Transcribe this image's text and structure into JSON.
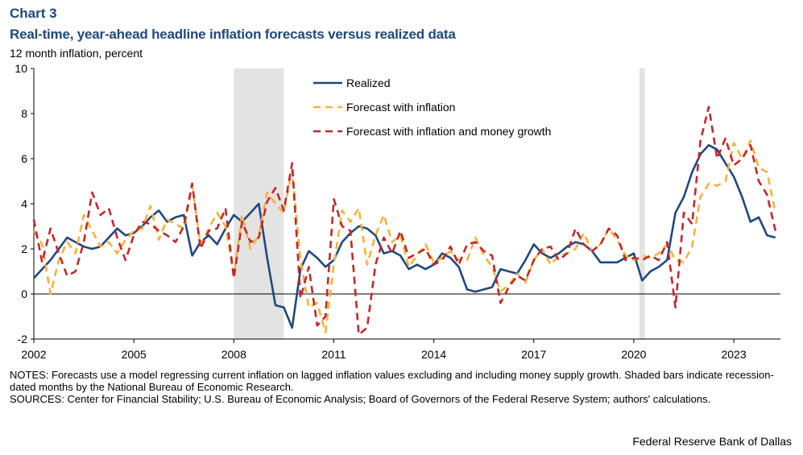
{
  "header": {
    "chart_label": "Chart 3",
    "title": "Real-time, year-ahead headline inflation forecasts versus realized data",
    "subtitle": "12 month inflation, percent"
  },
  "notes": {
    "notes_text": "NOTES: Forecasts use a model regressing current inflation on lagged inflation values excluding and including money supply growth. Shaded bars indicate recession-dated months by the National Bureau of Economic Research.",
    "sources_text": "SOURCES: Center for Financial Stability; U.S. Bureau of Economic Analysis; Board of Governors of the Federal Reserve System; authors' calculations."
  },
  "footer": {
    "credit": "Federal Reserve Bank of Dallas"
  },
  "colors": {
    "realized": "#1f497d",
    "forecast_inflation": "#f6b23c",
    "forecast_money": "#c0282d",
    "recession": "#e3e3e3",
    "title": "#1f497d"
  },
  "chart_data": {
    "type": "line",
    "title": "Real-time, year-ahead headline inflation forecasts versus realized data",
    "ylabel": "12 month inflation, percent",
    "xlim": [
      2002,
      2024.4
    ],
    "ylim": [
      -2,
      10
    ],
    "x_ticks": [
      2002,
      2005,
      2008,
      2011,
      2014,
      2017,
      2020,
      2023
    ],
    "x_tick_labels": [
      "2002",
      "2005",
      "2008",
      "2011",
      "2014",
      "2017",
      "2020",
      "2023"
    ],
    "y_ticks": [
      -2,
      0,
      2,
      4,
      6,
      8,
      10
    ],
    "y_tick_labels": [
      "-2",
      "0",
      "2",
      "4",
      "6",
      "8",
      "10"
    ],
    "legend_position": "top-center",
    "grid": false,
    "recessions": [
      [
        2008.0,
        2009.5
      ],
      [
        2020.17,
        2020.33
      ]
    ],
    "series": [
      {
        "name": "Realized",
        "style": "solid",
        "points": [
          [
            2002.0,
            0.7
          ],
          [
            2002.25,
            1.1
          ],
          [
            2002.5,
            1.5
          ],
          [
            2002.75,
            2.0
          ],
          [
            2003.0,
            2.5
          ],
          [
            2003.25,
            2.3
          ],
          [
            2003.5,
            2.1
          ],
          [
            2003.75,
            2.0
          ],
          [
            2004.0,
            2.1
          ],
          [
            2004.25,
            2.5
          ],
          [
            2004.5,
            2.9
          ],
          [
            2004.75,
            2.6
          ],
          [
            2005.0,
            2.7
          ],
          [
            2005.25,
            3.0
          ],
          [
            2005.5,
            3.4
          ],
          [
            2005.75,
            3.7
          ],
          [
            2006.0,
            3.2
          ],
          [
            2006.25,
            3.4
          ],
          [
            2006.5,
            3.5
          ],
          [
            2006.75,
            1.7
          ],
          [
            2007.0,
            2.3
          ],
          [
            2007.25,
            2.6
          ],
          [
            2007.5,
            2.2
          ],
          [
            2007.75,
            2.9
          ],
          [
            2008.0,
            3.5
          ],
          [
            2008.25,
            3.2
          ],
          [
            2008.5,
            3.6
          ],
          [
            2008.75,
            4.0
          ],
          [
            2009.0,
            1.6
          ],
          [
            2009.25,
            -0.5
          ],
          [
            2009.5,
            -0.6
          ],
          [
            2009.75,
            -1.5
          ],
          [
            2010.0,
            1.1
          ],
          [
            2010.25,
            1.9
          ],
          [
            2010.5,
            1.6
          ],
          [
            2010.75,
            1.2
          ],
          [
            2011.0,
            1.5
          ],
          [
            2011.25,
            2.3
          ],
          [
            2011.5,
            2.7
          ],
          [
            2011.75,
            3.0
          ],
          [
            2012.0,
            2.9
          ],
          [
            2012.25,
            2.6
          ],
          [
            2012.5,
            1.8
          ],
          [
            2012.75,
            1.9
          ],
          [
            2013.0,
            1.7
          ],
          [
            2013.25,
            1.1
          ],
          [
            2013.5,
            1.3
          ],
          [
            2013.75,
            1.1
          ],
          [
            2014.0,
            1.3
          ],
          [
            2014.25,
            1.8
          ],
          [
            2014.5,
            1.6
          ],
          [
            2014.75,
            1.2
          ],
          [
            2015.0,
            0.2
          ],
          [
            2015.25,
            0.1
          ],
          [
            2015.5,
            0.2
          ],
          [
            2015.75,
            0.3
          ],
          [
            2016.0,
            1.1
          ],
          [
            2016.25,
            1.0
          ],
          [
            2016.5,
            0.9
          ],
          [
            2016.75,
            1.5
          ],
          [
            2017.0,
            2.2
          ],
          [
            2017.25,
            1.8
          ],
          [
            2017.5,
            1.6
          ],
          [
            2017.75,
            1.8
          ],
          [
            2018.0,
            2.1
          ],
          [
            2018.25,
            2.3
          ],
          [
            2018.5,
            2.2
          ],
          [
            2018.75,
            1.9
          ],
          [
            2019.0,
            1.4
          ],
          [
            2019.25,
            1.4
          ],
          [
            2019.5,
            1.4
          ],
          [
            2019.75,
            1.6
          ],
          [
            2020.0,
            1.8
          ],
          [
            2020.25,
            0.6
          ],
          [
            2020.5,
            1.0
          ],
          [
            2020.75,
            1.2
          ],
          [
            2021.0,
            1.5
          ],
          [
            2021.25,
            3.6
          ],
          [
            2021.5,
            4.3
          ],
          [
            2021.75,
            5.4
          ],
          [
            2022.0,
            6.2
          ],
          [
            2022.25,
            6.6
          ],
          [
            2022.5,
            6.4
          ],
          [
            2022.75,
            5.8
          ],
          [
            2023.0,
            5.2
          ],
          [
            2023.25,
            4.3
          ],
          [
            2023.5,
            3.2
          ],
          [
            2023.75,
            3.4
          ],
          [
            2024.0,
            2.6
          ],
          [
            2024.25,
            2.5
          ]
        ]
      },
      {
        "name": "Forecast with inflation",
        "style": "dashed",
        "points": [
          [
            2002.0,
            2.8
          ],
          [
            2002.25,
            2.2
          ],
          [
            2002.5,
            0.0
          ],
          [
            2002.75,
            1.5
          ],
          [
            2003.0,
            2.3
          ],
          [
            2003.25,
            1.8
          ],
          [
            2003.5,
            3.5
          ],
          [
            2003.75,
            2.8
          ],
          [
            2004.0,
            2.1
          ],
          [
            2004.25,
            2.3
          ],
          [
            2004.5,
            1.8
          ],
          [
            2004.75,
            2.4
          ],
          [
            2005.0,
            2.8
          ],
          [
            2005.25,
            2.9
          ],
          [
            2005.5,
            3.9
          ],
          [
            2005.75,
            2.4
          ],
          [
            2006.0,
            3.3
          ],
          [
            2006.25,
            3.1
          ],
          [
            2006.5,
            2.9
          ],
          [
            2006.75,
            4.8
          ],
          [
            2007.0,
            2.2
          ],
          [
            2007.25,
            2.9
          ],
          [
            2007.5,
            3.6
          ],
          [
            2007.75,
            3.0
          ],
          [
            2008.0,
            0.8
          ],
          [
            2008.25,
            3.5
          ],
          [
            2008.5,
            2.0
          ],
          [
            2008.75,
            2.6
          ],
          [
            2009.0,
            4.5
          ],
          [
            2009.25,
            4.0
          ],
          [
            2009.5,
            3.6
          ],
          [
            2009.75,
            5.5
          ],
          [
            2010.0,
            1.5
          ],
          [
            2010.25,
            -0.6
          ],
          [
            2010.5,
            -0.4
          ],
          [
            2010.75,
            -1.7
          ],
          [
            2011.0,
            1.3
          ],
          [
            2011.25,
            3.7
          ],
          [
            2011.5,
            3.2
          ],
          [
            2011.75,
            3.8
          ],
          [
            2012.0,
            1.3
          ],
          [
            2012.25,
            2.6
          ],
          [
            2012.5,
            3.5
          ],
          [
            2012.75,
            2.3
          ],
          [
            2013.0,
            2.6
          ],
          [
            2013.25,
            1.2
          ],
          [
            2013.5,
            1.7
          ],
          [
            2013.75,
            2.2
          ],
          [
            2014.0,
            1.4
          ],
          [
            2014.25,
            1.6
          ],
          [
            2014.5,
            1.9
          ],
          [
            2014.75,
            1.5
          ],
          [
            2015.0,
            1.5
          ],
          [
            2015.25,
            2.5
          ],
          [
            2015.5,
            1.7
          ],
          [
            2015.75,
            1.2
          ],
          [
            2016.0,
            0.1
          ],
          [
            2016.25,
            0.4
          ],
          [
            2016.5,
            0.9
          ],
          [
            2016.75,
            0.5
          ],
          [
            2017.0,
            1.5
          ],
          [
            2017.25,
            2.0
          ],
          [
            2017.5,
            1.3
          ],
          [
            2017.75,
            1.7
          ],
          [
            2018.0,
            1.8
          ],
          [
            2018.25,
            2.0
          ],
          [
            2018.5,
            2.7
          ],
          [
            2018.75,
            1.9
          ],
          [
            2019.0,
            2.2
          ],
          [
            2019.25,
            2.9
          ],
          [
            2019.5,
            2.4
          ],
          [
            2019.75,
            1.7
          ],
          [
            2020.0,
            1.5
          ],
          [
            2020.25,
            1.7
          ],
          [
            2020.5,
            1.6
          ],
          [
            2020.75,
            1.8
          ],
          [
            2021.0,
            2.2
          ],
          [
            2021.25,
            1.5
          ],
          [
            2021.5,
            1.4
          ],
          [
            2021.75,
            2.1
          ],
          [
            2022.0,
            4.3
          ],
          [
            2022.25,
            4.9
          ],
          [
            2022.5,
            4.8
          ],
          [
            2022.75,
            5.0
          ],
          [
            2023.0,
            6.7
          ],
          [
            2023.25,
            6.0
          ],
          [
            2023.5,
            6.8
          ],
          [
            2023.75,
            5.6
          ],
          [
            2024.0,
            5.4
          ],
          [
            2024.25,
            3.6
          ]
        ]
      },
      {
        "name": "Forecast with inflation and money growth",
        "style": "dashed",
        "points": [
          [
            2002.0,
            3.3
          ],
          [
            2002.25,
            1.4
          ],
          [
            2002.5,
            2.9
          ],
          [
            2002.75,
            1.8
          ],
          [
            2003.0,
            0.8
          ],
          [
            2003.25,
            1.0
          ],
          [
            2003.5,
            2.3
          ],
          [
            2003.75,
            4.5
          ],
          [
            2004.0,
            3.5
          ],
          [
            2004.25,
            3.8
          ],
          [
            2004.5,
            2.5
          ],
          [
            2004.75,
            1.5
          ],
          [
            2005.0,
            2.6
          ],
          [
            2005.25,
            3.2
          ],
          [
            2005.5,
            3.1
          ],
          [
            2005.75,
            2.8
          ],
          [
            2006.0,
            2.6
          ],
          [
            2006.25,
            2.3
          ],
          [
            2006.5,
            3.0
          ],
          [
            2006.75,
            4.9
          ],
          [
            2007.0,
            2.0
          ],
          [
            2007.25,
            2.8
          ],
          [
            2007.5,
            2.9
          ],
          [
            2007.75,
            3.8
          ],
          [
            2008.0,
            0.7
          ],
          [
            2008.25,
            3.2
          ],
          [
            2008.5,
            2.3
          ],
          [
            2008.75,
            2.5
          ],
          [
            2009.0,
            4.1
          ],
          [
            2009.25,
            4.7
          ],
          [
            2009.5,
            3.7
          ],
          [
            2009.75,
            5.8
          ],
          [
            2010.0,
            -0.2
          ],
          [
            2010.25,
            1.2
          ],
          [
            2010.5,
            -1.4
          ],
          [
            2010.75,
            -1.0
          ],
          [
            2011.0,
            4.2
          ],
          [
            2011.25,
            3.0
          ],
          [
            2011.5,
            2.8
          ],
          [
            2011.75,
            -1.8
          ],
          [
            2012.0,
            -1.5
          ],
          [
            2012.25,
            1.3
          ],
          [
            2012.5,
            2.5
          ],
          [
            2012.75,
            1.8
          ],
          [
            2013.0,
            2.8
          ],
          [
            2013.25,
            1.6
          ],
          [
            2013.5,
            1.8
          ],
          [
            2013.75,
            2.0
          ],
          [
            2014.0,
            1.3
          ],
          [
            2014.25,
            1.5
          ],
          [
            2014.5,
            2.1
          ],
          [
            2014.75,
            1.3
          ],
          [
            2015.0,
            2.2
          ],
          [
            2015.25,
            2.3
          ],
          [
            2015.5,
            1.9
          ],
          [
            2015.75,
            1.7
          ],
          [
            2016.0,
            -0.4
          ],
          [
            2016.25,
            0.3
          ],
          [
            2016.5,
            0.8
          ],
          [
            2016.75,
            0.6
          ],
          [
            2017.0,
            1.5
          ],
          [
            2017.25,
            2.0
          ],
          [
            2017.5,
            2.1
          ],
          [
            2017.75,
            1.5
          ],
          [
            2018.0,
            1.8
          ],
          [
            2018.25,
            2.9
          ],
          [
            2018.5,
            2.2
          ],
          [
            2018.75,
            1.9
          ],
          [
            2019.0,
            2.2
          ],
          [
            2019.25,
            2.9
          ],
          [
            2019.5,
            2.6
          ],
          [
            2019.75,
            1.5
          ],
          [
            2020.0,
            1.6
          ],
          [
            2020.25,
            1.5
          ],
          [
            2020.5,
            1.7
          ],
          [
            2020.75,
            1.5
          ],
          [
            2021.0,
            2.3
          ],
          [
            2021.25,
            -0.6
          ],
          [
            2021.5,
            3.6
          ],
          [
            2021.75,
            3.1
          ],
          [
            2022.0,
            6.8
          ],
          [
            2022.25,
            8.3
          ],
          [
            2022.5,
            6.0
          ],
          [
            2022.75,
            6.9
          ],
          [
            2023.0,
            5.7
          ],
          [
            2023.25,
            6.0
          ],
          [
            2023.5,
            6.6
          ],
          [
            2023.75,
            5.0
          ],
          [
            2024.0,
            4.4
          ],
          [
            2024.25,
            2.8
          ]
        ]
      }
    ]
  }
}
